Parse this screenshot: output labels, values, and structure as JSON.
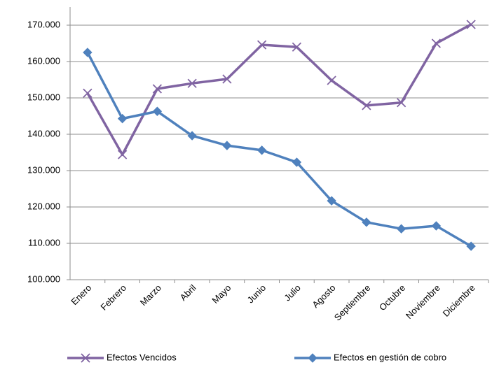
{
  "chart_data": {
    "type": "line",
    "categories": [
      "Enero",
      "Febrero",
      "Marzo",
      "Abril",
      "Mayo",
      "Junio",
      "Julio",
      "Agosto",
      "Septiembre",
      "Octubre",
      "Noviembre",
      "Diciembre"
    ],
    "series": [
      {
        "name": "Efectos Vencidos",
        "color": "#8064a2",
        "marker": "x",
        "values": [
          151300,
          134400,
          152500,
          154000,
          155200,
          164600,
          164000,
          154800,
          147900,
          148700,
          165000,
          170200
        ]
      },
      {
        "name": "Efectos en gestión de cobro",
        "color": "#4f81bd",
        "marker": "diamond",
        "values": [
          162500,
          144300,
          146300,
          139600,
          136900,
          135600,
          132300,
          121700,
          115800,
          114000,
          114800,
          109200
        ]
      }
    ],
    "ylim": [
      100000,
      170000
    ],
    "yticks": [
      {
        "value": 100000,
        "label": "100.000"
      },
      {
        "value": 110000,
        "label": "110.000"
      },
      {
        "value": 120000,
        "label": "120.000"
      },
      {
        "value": 130000,
        "label": "130.000"
      },
      {
        "value": 140000,
        "label": "140.000"
      },
      {
        "value": 150000,
        "label": "150.000"
      },
      {
        "value": 160000,
        "label": "160.000"
      },
      {
        "value": 170000,
        "label": "170.000"
      }
    ],
    "grid": true,
    "legend": "bottom"
  }
}
